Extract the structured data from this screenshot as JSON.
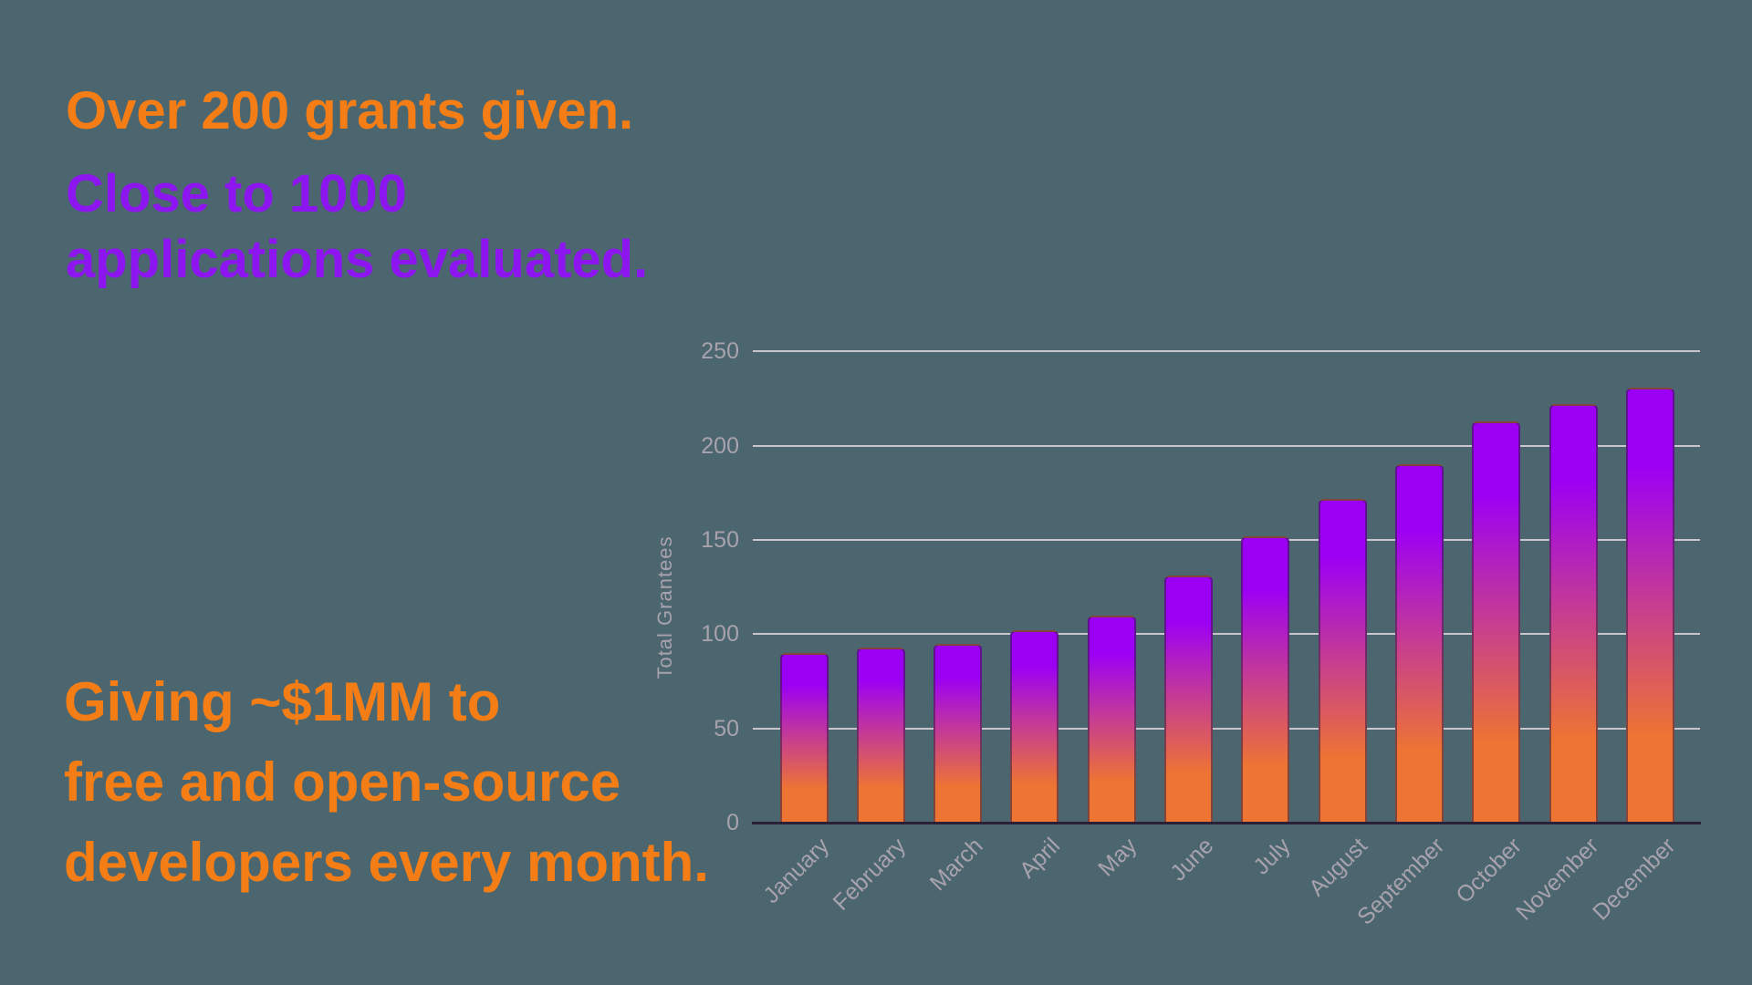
{
  "headings": {
    "grants": "Over 200 grants given.",
    "applications": "Close to 1000 applications evaluated.",
    "giving_line1": "Giving ~$1MM to",
    "giving_line2": "free and open-source",
    "giving_line3": "developers every month."
  },
  "colors": {
    "background": "#4c6670",
    "heading_orange": "#f57d15",
    "heading_purple": "#8d15f0",
    "bar_gradient_top": "#9c00f4",
    "bar_gradient_mid": "#c63e90",
    "bar_gradient_bottom": "#ed7433",
    "gridline": "#c9c6ce",
    "axis_line": "#2a2139",
    "tick_label": "#a8a2ad"
  },
  "chart_data": {
    "type": "bar",
    "title": "",
    "xlabel": "",
    "ylabel": "Total Grantees",
    "categories": [
      "January",
      "February",
      "March",
      "April",
      "May",
      "June",
      "July",
      "August",
      "September",
      "October",
      "November",
      "December"
    ],
    "values": [
      90,
      93,
      95,
      102,
      110,
      131,
      152,
      172,
      190,
      213,
      222,
      231
    ],
    "ylim": [
      0,
      250
    ],
    "yticks": [
      0,
      50,
      100,
      150,
      200,
      250
    ],
    "grid": true,
    "legend": false,
    "bar_color_gradient": [
      "#9c00f4",
      "#c63e90",
      "#ed7433"
    ]
  }
}
